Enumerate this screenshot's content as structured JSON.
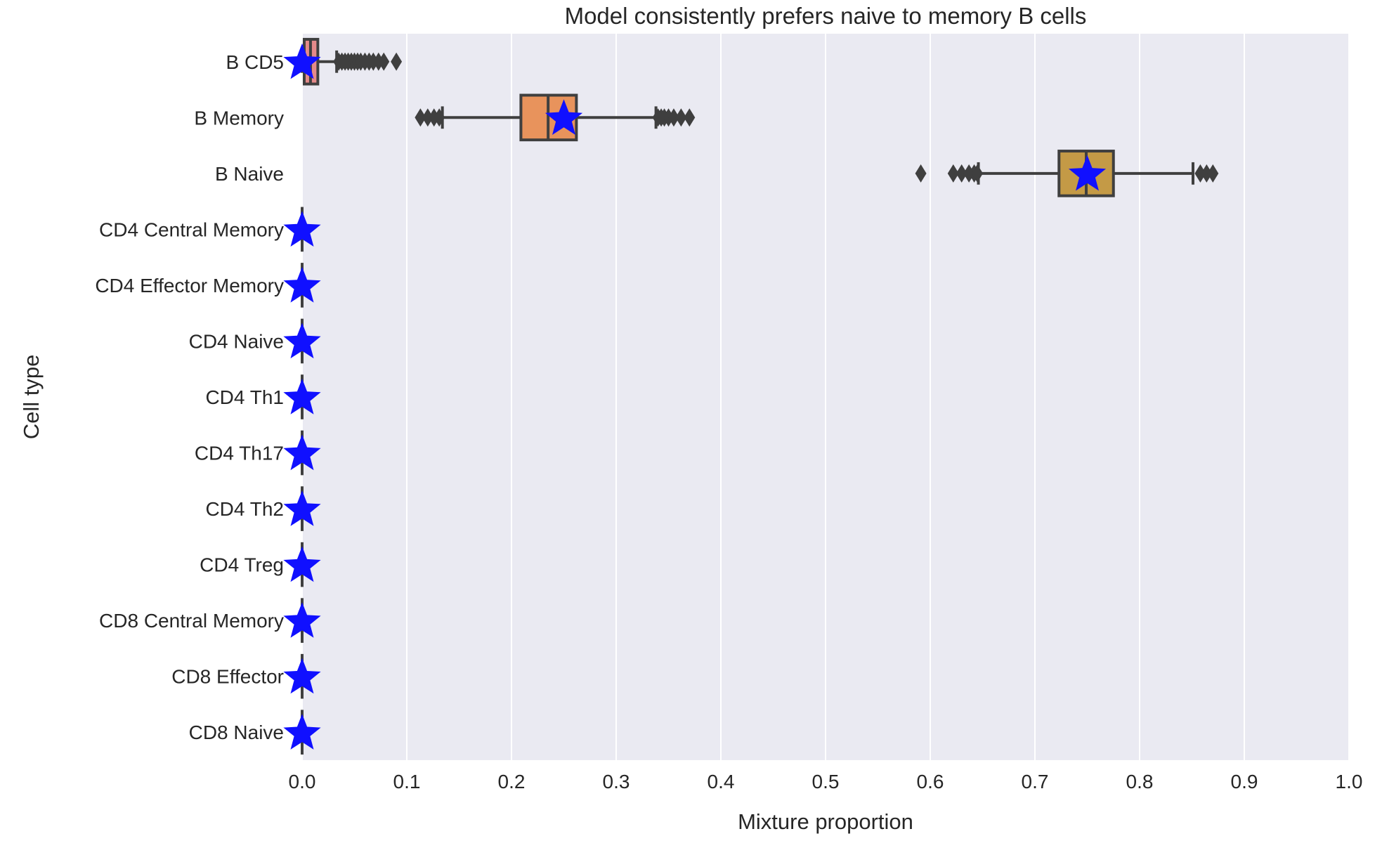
{
  "chart_data": {
    "type": "box",
    "orientation": "horizontal",
    "title": "Model consistently prefers naive to memory B cells",
    "xlabel": "Mixture proportion",
    "ylabel": "Cell type",
    "xlim": [
      0.0,
      1.0
    ],
    "xticks": [
      "0.0",
      "0.1",
      "0.2",
      "0.3",
      "0.4",
      "0.5",
      "0.6",
      "0.7",
      "0.8",
      "0.9",
      "1.0"
    ],
    "grid": "vertical",
    "categories": [
      "B CD5",
      "B Memory",
      "B Naive",
      "CD4 Central Memory",
      "CD4 Effector Memory",
      "CD4 Naive",
      "CD4 Th1",
      "CD4 Th17",
      "CD4 Th2",
      "CD4 Treg",
      "CD8 Central Memory",
      "CD8 Effector",
      "CD8 Naive"
    ],
    "boxes": [
      {
        "q1": 0.002,
        "median": 0.008,
        "q3": 0.015,
        "whisker_low": 0.0,
        "whisker_high": 0.033,
        "outliers": [
          0.035,
          0.038,
          0.041,
          0.044,
          0.047,
          0.05,
          0.053,
          0.056,
          0.06,
          0.064,
          0.068,
          0.073,
          0.078,
          0.09
        ]
      },
      {
        "q1": 0.209,
        "median": 0.235,
        "q3": 0.262,
        "whisker_low": 0.134,
        "whisker_high": 0.338,
        "outliers": [
          0.113,
          0.12,
          0.126,
          0.131,
          0.34,
          0.343,
          0.346,
          0.35,
          0.355,
          0.362,
          0.37
        ]
      },
      {
        "q1": 0.723,
        "median": 0.749,
        "q3": 0.775,
        "whisker_low": 0.646,
        "whisker_high": 0.851,
        "outliers": [
          0.591,
          0.622,
          0.63,
          0.637,
          0.642,
          0.645,
          0.858,
          0.864,
          0.87
        ]
      },
      {
        "q1": 0.0,
        "median": 0.0,
        "q3": 0.0,
        "whisker_low": 0.0,
        "whisker_high": 0.0,
        "outliers": []
      },
      {
        "q1": 0.0,
        "median": 0.0,
        "q3": 0.0,
        "whisker_low": 0.0,
        "whisker_high": 0.0,
        "outliers": []
      },
      {
        "q1": 0.0,
        "median": 0.0,
        "q3": 0.0,
        "whisker_low": 0.0,
        "whisker_high": 0.0,
        "outliers": []
      },
      {
        "q1": 0.0,
        "median": 0.0,
        "q3": 0.0,
        "whisker_low": 0.0,
        "whisker_high": 0.0,
        "outliers": []
      },
      {
        "q1": 0.0,
        "median": 0.0,
        "q3": 0.0,
        "whisker_low": 0.0,
        "whisker_high": 0.0,
        "outliers": []
      },
      {
        "q1": 0.0,
        "median": 0.0,
        "q3": 0.0,
        "whisker_low": 0.0,
        "whisker_high": 0.0,
        "outliers": []
      },
      {
        "q1": 0.0,
        "median": 0.0,
        "q3": 0.0,
        "whisker_low": 0.0,
        "whisker_high": 0.0,
        "outliers": []
      },
      {
        "q1": 0.0,
        "median": 0.0,
        "q3": 0.0,
        "whisker_low": 0.0,
        "whisker_high": 0.0,
        "outliers": []
      },
      {
        "q1": 0.0,
        "median": 0.0,
        "q3": 0.0,
        "whisker_low": 0.0,
        "whisker_high": 0.0,
        "outliers": []
      },
      {
        "q1": 0.0,
        "median": 0.0,
        "q3": 0.0,
        "whisker_low": 0.0,
        "whisker_high": 0.0,
        "outliers": []
      }
    ],
    "true_proportions": [
      0.0,
      0.25,
      0.75,
      0.0,
      0.0,
      0.0,
      0.0,
      0.0,
      0.0,
      0.0,
      0.0,
      0.0,
      0.0
    ],
    "box_colors": [
      "#e58a8a",
      "#e8935c",
      "#c49a46",
      "#a9a64e",
      "#8fb04e",
      "#5fb25a",
      "#55b07e",
      "#57ad9c",
      "#56aab0",
      "#5aa3c8",
      "#7c98d6",
      "#a48cd8",
      "#c884d4"
    ],
    "colors": {
      "plot_background": "#eaeaf2",
      "grid": "#ffffff",
      "box_edge": "#3f3f3f",
      "star": "#1010ff",
      "text": "#262626"
    }
  }
}
